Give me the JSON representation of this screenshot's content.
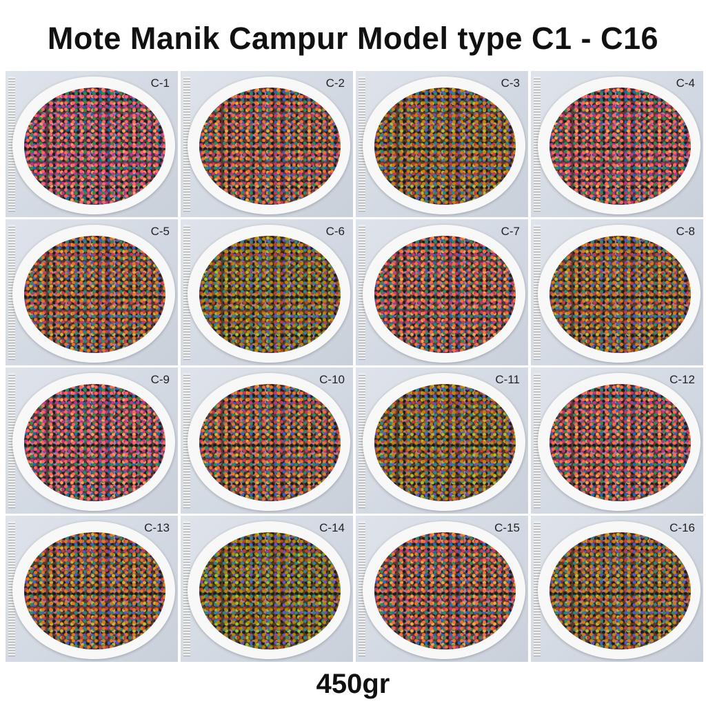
{
  "title": "Mote Manik Campur Model type C1 - C16",
  "tiles": [
    {
      "label": "C-1"
    },
    {
      "label": "C-2"
    },
    {
      "label": "C-3"
    },
    {
      "label": "C-4"
    },
    {
      "label": "C-5"
    },
    {
      "label": "C-6"
    },
    {
      "label": "C-7"
    },
    {
      "label": "C-8"
    },
    {
      "label": "C-9"
    },
    {
      "label": "C-10"
    },
    {
      "label": "C-11"
    },
    {
      "label": "C-12"
    },
    {
      "label": "C-13"
    },
    {
      "label": "C-14"
    },
    {
      "label": "C-15"
    },
    {
      "label": "C-16"
    }
  ],
  "weight": "450gr"
}
